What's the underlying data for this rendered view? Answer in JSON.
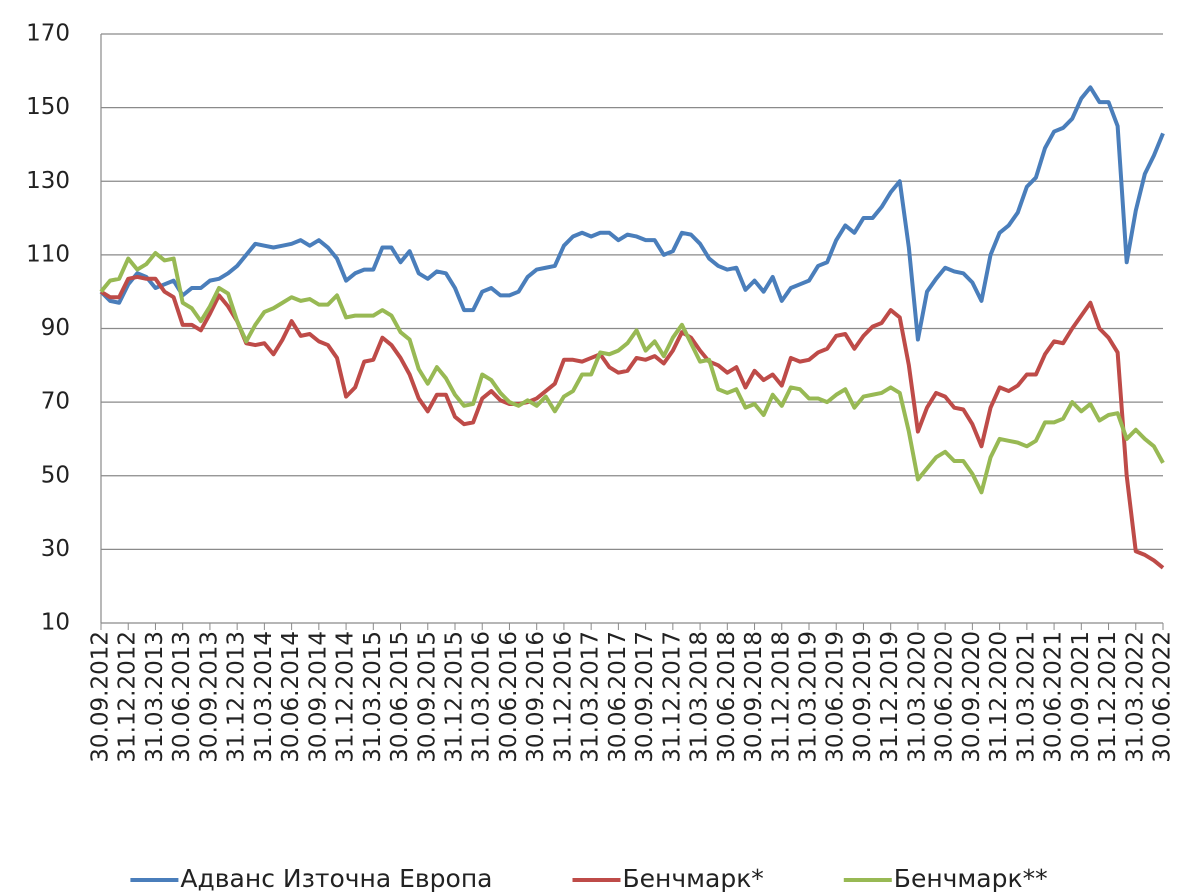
{
  "chart_data": {
    "type": "line",
    "categories": [
      "30.09.2012",
      null,
      null,
      "31.12.2012",
      null,
      null,
      "31.03.2013",
      null,
      null,
      "30.06.2013",
      null,
      null,
      "30.09.2013",
      null,
      null,
      "31.12.2013",
      null,
      null,
      "31.03.2014",
      null,
      null,
      "30.06.2014",
      null,
      null,
      "30.09.2014",
      null,
      null,
      "31.12.2014",
      null,
      null,
      "31.03.2015",
      null,
      null,
      "30.06.2015",
      null,
      null,
      "30.09.2015",
      null,
      null,
      "31.12.2015",
      null,
      null,
      "31.03.2016",
      null,
      null,
      "30.06.2016",
      null,
      null,
      "30.09.2016",
      null,
      null,
      "31.12.2016",
      null,
      null,
      "31.03.2017",
      null,
      null,
      "30.06.2017",
      null,
      null,
      "30.09.2017",
      null,
      null,
      "31.12.2017",
      null,
      null,
      "31.03.2018",
      null,
      null,
      "30.06.2018",
      null,
      null,
      "30.09.2018",
      null,
      null,
      "31.12.2018",
      null,
      null,
      "31.03.2019",
      null,
      null,
      "30.06.2019",
      null,
      null,
      "30.09.2019",
      null,
      null,
      "31.12.2019",
      null,
      null,
      "31.03.2020",
      null,
      null,
      "30.06.2020",
      null,
      null,
      "30.09.2020",
      null,
      null,
      "31.12.2020",
      null,
      null,
      "31.03.2021",
      null,
      null,
      "30.06.2021",
      null,
      null,
      "30.09.2021",
      null,
      null,
      "31.12.2021",
      null,
      null,
      "31.03.2022",
      null,
      null,
      "30.06.2022"
    ],
    "series": [
      {
        "name": "Адванс Източна Европа",
        "color": "#4a7ebb",
        "values": [
          100,
          97.5,
          97,
          102,
          105,
          104,
          101,
          102,
          103,
          99,
          101,
          101,
          103,
          103.5,
          105,
          107,
          110,
          113,
          112.5,
          112,
          112.5,
          113,
          114,
          112.5,
          114,
          112,
          109,
          103,
          105,
          106,
          106,
          112,
          112,
          108,
          111,
          105,
          103.5,
          105.5,
          105,
          101,
          95,
          95,
          100,
          101,
          99,
          99,
          100,
          104,
          106,
          106.5,
          107,
          112.5,
          115,
          116,
          115,
          116,
          116,
          114,
          115.5,
          115,
          114,
          114,
          110,
          111,
          116,
          115.5,
          113,
          109,
          107,
          106,
          106.5,
          100.5,
          103,
          100,
          104,
          97.5,
          101,
          102,
          103,
          107,
          108,
          114,
          118,
          116,
          120,
          120,
          123,
          127,
          130,
          112,
          87,
          100,
          103.5,
          106.5,
          105.5,
          105,
          102.5,
          97.5,
          110,
          116,
          118,
          121.5,
          128.5,
          131,
          139,
          143.5,
          144.5,
          147,
          152.5,
          155.5,
          151.5,
          151.5,
          145,
          108,
          122,
          132,
          137,
          143
        ]
      },
      {
        "name": "Бенчмарк*",
        "color": "#be4b48",
        "values": [
          100,
          98.5,
          98.5,
          103.5,
          104,
          103.5,
          103.5,
          100,
          98.5,
          91,
          91,
          89.5,
          94,
          99,
          96,
          92,
          86,
          85.5,
          86,
          83,
          87,
          92,
          88,
          88.5,
          86.5,
          85.5,
          82,
          71.5,
          74,
          81,
          81.5,
          87.5,
          85.5,
          82,
          77.5,
          71,
          67.5,
          72,
          72,
          66,
          64,
          64.5,
          71,
          73,
          70.5,
          69.5,
          69.5,
          70,
          71,
          73,
          75,
          81.5,
          81.5,
          81,
          82,
          83,
          79.5,
          78,
          78.5,
          82,
          81.5,
          82.5,
          80.5,
          84,
          89,
          87.5,
          84,
          81,
          80,
          78,
          79.5,
          74,
          78.5,
          76,
          77.5,
          74.5,
          82,
          81,
          81.5,
          83.5,
          84.5,
          88,
          88.5,
          84.5,
          88,
          90.5,
          91.5,
          95,
          93,
          80,
          62,
          68.5,
          72.5,
          71.5,
          68.5,
          68,
          64,
          58,
          68.5,
          74,
          73,
          74.5,
          77.5,
          77.5,
          83,
          86.5,
          86,
          90,
          93.5,
          97,
          90,
          87.5,
          83.5,
          50,
          29.5,
          28.5,
          27,
          25
        ]
      },
      {
        "name": "Бенчмарк**",
        "color": "#98b954",
        "values": [
          100,
          103,
          103.5,
          109,
          106,
          107.5,
          110.5,
          108.5,
          109,
          97,
          95.5,
          92,
          96,
          101,
          99.5,
          92,
          86.5,
          91,
          94.5,
          95.5,
          97,
          98.5,
          97.5,
          98,
          96.5,
          96.5,
          99,
          93,
          93.5,
          93.5,
          93.5,
          95,
          93.5,
          89,
          87,
          79,
          75,
          79.5,
          76.5,
          72,
          69,
          69.5,
          77.5,
          76,
          72.5,
          70,
          69,
          70.5,
          69,
          71.5,
          67.5,
          71.5,
          73,
          77.5,
          77.5,
          83.5,
          83,
          84,
          86,
          89.5,
          84,
          86.5,
          82.5,
          87.5,
          91,
          86,
          81,
          81.5,
          73.5,
          72.5,
          73.5,
          68.5,
          69.5,
          66.5,
          72,
          69,
          74,
          73.5,
          71,
          71,
          70,
          72,
          73.5,
          68.5,
          71.5,
          72,
          72.5,
          74,
          72.5,
          62,
          49,
          52,
          55,
          56.5,
          54,
          54,
          50.5,
          45.5,
          55,
          60,
          59.5,
          59,
          58,
          59.5,
          64.5,
          64.5,
          65.5,
          70,
          67.5,
          69.5,
          65,
          66.5,
          67,
          60,
          62.5,
          60,
          58,
          53.5
        ]
      }
    ],
    "ylim": [
      10,
      170
    ],
    "yticks": [
      10,
      30,
      50,
      70,
      90,
      110,
      130,
      150,
      170
    ],
    "grid": true,
    "legend": "bottom"
  }
}
